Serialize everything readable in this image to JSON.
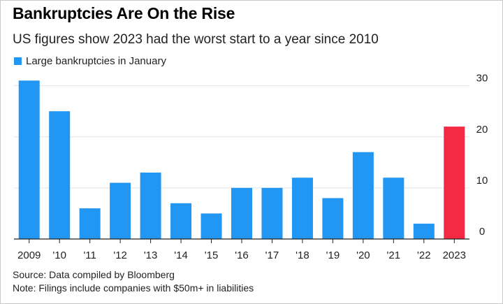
{
  "title": "Bankruptcies Are On the Rise",
  "subtitle": "US figures show 2023 had the worst start to a year since 2010",
  "legend": {
    "label": "Large bankruptcies in January"
  },
  "footer": {
    "source": "Source: Data compiled by Bloomberg",
    "note": "Note: Filings include companies with $50m+ in liabilities"
  },
  "colors": {
    "bar": "#2196f3",
    "highlight": "#f42a45",
    "grid": "#e3e3e3",
    "axis": "#222222"
  },
  "chart_data": {
    "type": "bar",
    "categories": [
      "2009",
      "'10",
      "'11",
      "'12",
      "'13",
      "'14",
      "'15",
      "'16",
      "'17",
      "'18",
      "'19",
      "'20",
      "'21",
      "'22",
      "2023"
    ],
    "series": [
      {
        "name": "Large bankruptcies in January",
        "values": [
          31,
          25,
          6,
          11,
          13,
          7,
          5,
          10,
          10,
          12,
          8,
          17,
          12,
          3,
          22
        ]
      }
    ],
    "highlight_category": "2023",
    "yticks": [
      0,
      10,
      20,
      30
    ],
    "ylim": [
      0,
      32
    ],
    "grid": true,
    "y_axis_position": "right",
    "legend_position": "top-left"
  }
}
